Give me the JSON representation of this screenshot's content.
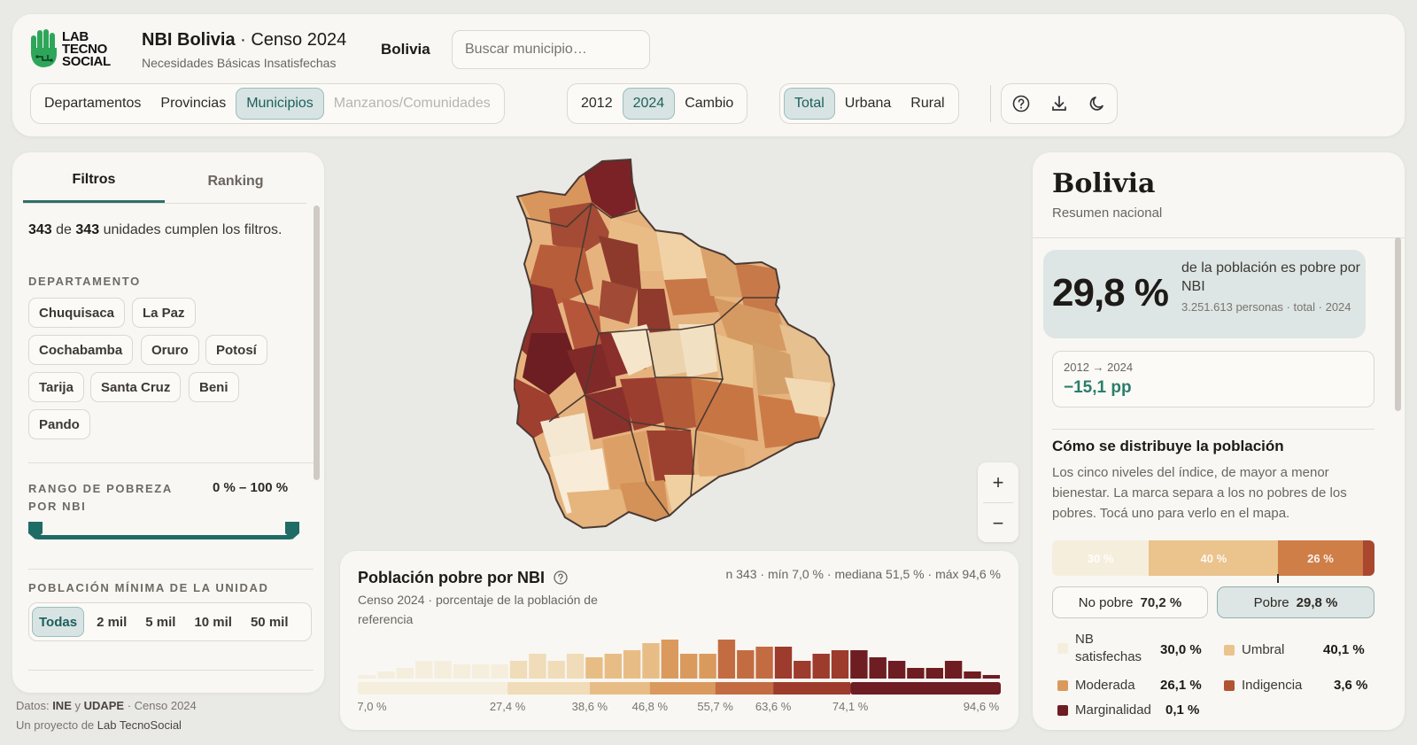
{
  "header": {
    "logo_text": [
      "LAB",
      "TECNO",
      "SOCIAL"
    ],
    "title_bold": "NBI Bolivia",
    "title_rest": " · Censo 2024",
    "subtitle": "Necesidades Básicas Insatisfechas",
    "breadcrumb": "Bolivia",
    "search_placeholder": "Buscar municipio…",
    "levels": [
      "Departamentos",
      "Provincias",
      "Municipios",
      "Manzanos/Comunidades"
    ],
    "active_level": "Municipios",
    "disabled_level": "Manzanos/Comunidades",
    "years": [
      "2012",
      "2024",
      "Cambio"
    ],
    "active_year": "2024",
    "areas": [
      "Total",
      "Urbana",
      "Rural"
    ],
    "active_area": "Total",
    "icons": [
      "help-icon",
      "download-icon",
      "moon-icon"
    ]
  },
  "left_panel": {
    "tabs": [
      "Filtros",
      "Ranking"
    ],
    "active_tab": "Filtros",
    "count_shown": "343",
    "count_connector": "de",
    "count_total": "343",
    "count_suffix": "unidades cumplen los filtros.",
    "departamento_label": "DEPARTAMENTO",
    "departamentos": [
      "Chuquisaca",
      "La Paz",
      "Cochabamba",
      "Oruro",
      "Potosí",
      "Tarija",
      "Santa Cruz",
      "Beni",
      "Pando"
    ],
    "range_label": "RANGO DE POBREZA POR NBI",
    "range_value": "0 % – 100 %",
    "range_min": 0,
    "range_max": 100,
    "population_label": "POBLACIÓN MÍNIMA DE LA UNIDAD",
    "population_options": [
      "Todas",
      "2 mil",
      "5 mil",
      "10 mil",
      "50 mil"
    ],
    "active_population": "Todas"
  },
  "footer": {
    "line1_prefix": "Datos: ",
    "source1": "INE",
    "connector": " y ",
    "source2": "UDAPE",
    "line1_suffix": " · Censo 2024",
    "line2_prefix": "Un proyecto de ",
    "line2_name": "Lab TecnoSocial"
  },
  "map_controls": {
    "zoom_in": "+",
    "zoom_out": "−"
  },
  "histogram": {
    "title": "Población pobre por NBI",
    "subtitle": "Censo 2024 · porcentaje de la población de referencia",
    "stats": "n 343 · mín 7,0 % · mediana 51,5 % · máx 94,6 %",
    "tick_labels": [
      "7,0 %",
      "27,4 %",
      "38,6 %",
      "46,8 %",
      "55,7 %",
      "63,6 %",
      "74,1 %",
      "94,6 %"
    ]
  },
  "chart_data": {
    "type": "bar",
    "x": [
      7.0,
      9.6,
      12.3,
      14.9,
      17.5,
      20.2,
      22.8,
      25.4,
      28.1,
      30.7,
      33.3,
      36.0,
      38.6,
      41.2,
      43.9,
      46.5,
      49.1,
      51.7,
      54.4,
      57.0,
      59.6,
      62.3,
      64.9,
      67.5,
      70.2,
      72.8,
      75.4,
      78.1,
      80.7,
      83.3,
      86.0,
      88.6,
      91.2,
      93.9
    ],
    "values": [
      1,
      2,
      3,
      5,
      5,
      4,
      4,
      4,
      5,
      7,
      5,
      7,
      6,
      7,
      8,
      10,
      11,
      7,
      7,
      11,
      8,
      9,
      9,
      5,
      7,
      8,
      8,
      6,
      5,
      3,
      3,
      5,
      2,
      1
    ],
    "xlim": [
      7.0,
      94.6
    ],
    "quantile_breaks": [
      7.0,
      27.4,
      38.6,
      46.8,
      55.7,
      63.6,
      74.1,
      94.6
    ],
    "colors": [
      "#f6eedd",
      "#f0dcb8",
      "#e8bd85",
      "#da9a5e",
      "#c46c41",
      "#9d3b2c",
      "#6e1d22"
    ]
  },
  "summary": {
    "title": "Bolivia",
    "subtitle": "Resumen nacional",
    "pct_poor": "29,8 %",
    "pct_desc": "de la población es pobre por NBI",
    "people_line": "3.251.613 personas · total · 2024",
    "change_label": "2012 → 2024",
    "change_value": "−15,1 pp",
    "dist_title": "Cómo se distribuye la población",
    "dist_desc": "Los cinco niveles del índice, de mayor a menor bienestar. La marca separa a los no pobres de los pobres. Tocá uno para verlo en el mapa.",
    "stack": [
      {
        "label": "30 %",
        "value": 30.0,
        "color": "#f6eedd"
      },
      {
        "label": "40 %",
        "value": 40.1,
        "color": "#eac38d"
      },
      {
        "label": "26 %",
        "value": 26.1,
        "color": "#cf7e48"
      },
      {
        "label": "",
        "value": 3.6,
        "color": "#a9482f"
      },
      {
        "label": "",
        "value": 0.1,
        "color": "#6e1d22"
      }
    ],
    "no_pobre_label": "No pobre",
    "no_pobre_value": "70,2 %",
    "pobre_label": "Pobre",
    "pobre_value": "29,8 %",
    "legend": [
      {
        "label": "NB satisfechas",
        "value": "30,0 %",
        "color": "#f6eedd"
      },
      {
        "label": "Umbral",
        "value": "40,1 %",
        "color": "#eac38d"
      },
      {
        "label": "Moderada",
        "value": "26,1 %",
        "color": "#da9a5e"
      },
      {
        "label": "Indigencia",
        "value": "3,6 %",
        "color": "#b25434"
      },
      {
        "label": "Marginalidad",
        "value": "0,1 %",
        "color": "#6e1d22"
      }
    ]
  }
}
